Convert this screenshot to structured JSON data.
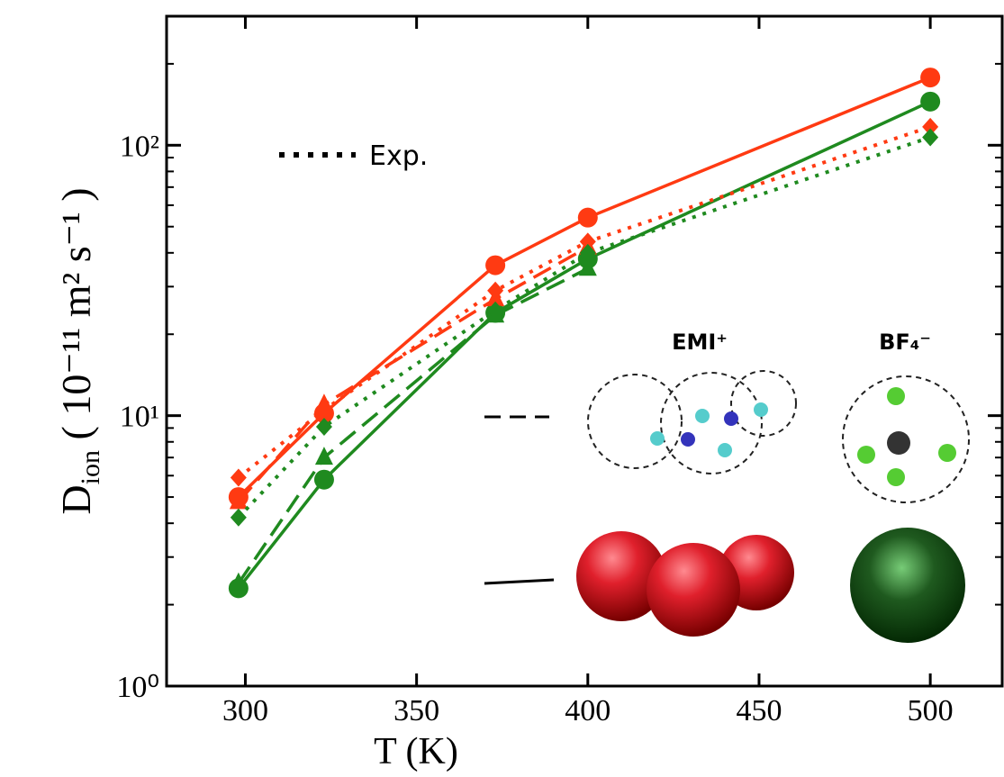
{
  "chart_data": {
    "type": "line",
    "x": [
      298,
      323,
      373,
      400,
      500
    ],
    "series": [
      {
        "color": "#ff3a12",
        "marker": "circle",
        "dash": "solid",
        "values": [
          5.0,
          10.2,
          36,
          54,
          178
        ]
      },
      {
        "color": "#1f8a1f",
        "marker": "circle",
        "dash": "solid",
        "values": [
          2.3,
          5.8,
          24,
          38,
          145
        ]
      },
      {
        "color": "#ff3a12",
        "marker": "triangle",
        "dash": "dashed",
        "values": [
          4.8,
          11,
          27,
          42,
          null
        ]
      },
      {
        "color": "#1f8a1f",
        "marker": "triangle",
        "dash": "dashed",
        "values": [
          2.4,
          7,
          23.5,
          35,
          null
        ]
      },
      {
        "color": "#ff3a12",
        "marker": "diamond",
        "dash": "dotted",
        "values": [
          5.9,
          10.5,
          29,
          44,
          117
        ]
      },
      {
        "color": "#1f8a1f",
        "marker": "diamond",
        "dash": "dotted",
        "values": [
          4.2,
          9.1,
          24.5,
          40,
          107
        ]
      }
    ],
    "xlim": [
      277,
      521
    ],
    "xticks": [
      300,
      350,
      400,
      450,
      500
    ],
    "ylim": [
      1,
      300
    ],
    "log_y": true,
    "yticks": [
      {
        "value": 1,
        "label": "10⁰"
      },
      {
        "value": 10,
        "label": "10¹"
      },
      {
        "value": 100,
        "label": "10²"
      }
    ],
    "xlabel": "T (K)",
    "ylabel": {
      "main": "D",
      "sub": "ion",
      "unit": " ( 10⁻¹¹  m² s⁻¹ )"
    },
    "annotations": {
      "exp": "Exp.",
      "cation": "EMI⁺",
      "anion": "BF₄⁻"
    }
  }
}
